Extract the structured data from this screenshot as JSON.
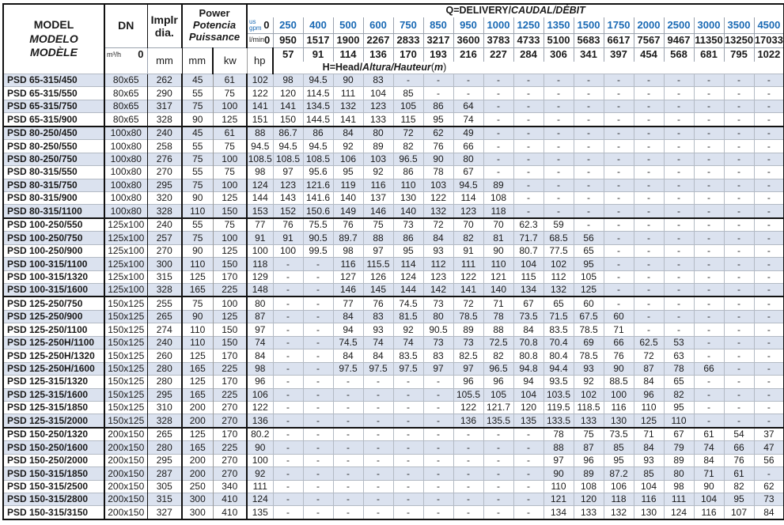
{
  "colors": {
    "accent_blue": "#1969b4",
    "row_stripe": "#dbe2ef",
    "grid_gray": "#b3bac4",
    "border_dark": "#111111"
  },
  "header": {
    "model_lines": [
      "MODEL",
      "MODELO",
      "MODÈLE"
    ],
    "dn_label": "DN",
    "implr_line1": "Implr",
    "implr_line2": "dia.",
    "power_lines": [
      "Power",
      "Potencia",
      "Puissance"
    ],
    "unit_mm": "mm",
    "kw_label": "kw",
    "hp_label": "hp",
    "q_title_plain": "Q=DELIVERY/",
    "q_title_italic": "CAUDAL/DÉBIT",
    "h_title_plain": "H=Head/",
    "h_title_italic": "Altura/Hauteur",
    "h_title_suffix_italic": "m",
    "flow_rows": [
      {
        "unit_lines": [
          "us",
          "gpm"
        ],
        "blue": true,
        "values": [
          "0",
          "250",
          "400",
          "500",
          "600",
          "750",
          "850",
          "950",
          "1000",
          "1250",
          "1350",
          "1500",
          "1750",
          "2000",
          "2500",
          "3000",
          "3500",
          "4500"
        ]
      },
      {
        "unit_lines": [
          "l/min"
        ],
        "blue": false,
        "values": [
          "0",
          "950",
          "1517",
          "1900",
          "2267",
          "2833",
          "3217",
          "3600",
          "3783",
          "4733",
          "5100",
          "5683",
          "6617",
          "7567",
          "9467",
          "11350",
          "13250",
          "17033"
        ]
      },
      {
        "unit_lines": [
          "m³/h"
        ],
        "blue": false,
        "values": [
          "0",
          "57",
          "91",
          "114",
          "136",
          "170",
          "193",
          "216",
          "227",
          "284",
          "306",
          "341",
          "397",
          "454",
          "568",
          "681",
          "795",
          "1022"
        ]
      }
    ]
  },
  "rows": [
    {
      "model": "PSD 65-315/450",
      "dn": "80x65",
      "dia": "262",
      "kw": "45",
      "hp": "61",
      "group_start": false,
      "head": [
        "102",
        "98",
        "94.5",
        "90",
        "83",
        "-",
        "-",
        "-",
        "-",
        "-",
        "-",
        "-",
        "-",
        "-",
        "-",
        "-",
        "-",
        "-"
      ]
    },
    {
      "model": "PSD 65-315/550",
      "dn": "80x65",
      "dia": "290",
      "kw": "55",
      "hp": "75",
      "group_start": false,
      "head": [
        "122",
        "120",
        "114.5",
        "111",
        "104",
        "85",
        "-",
        "-",
        "-",
        "-",
        "-",
        "-",
        "-",
        "-",
        "-",
        "-",
        "-",
        "-"
      ]
    },
    {
      "model": "PSD 65-315/750",
      "dn": "80x65",
      "dia": "317",
      "kw": "75",
      "hp": "100",
      "group_start": false,
      "head": [
        "141",
        "141",
        "134.5",
        "132",
        "123",
        "105",
        "86",
        "64",
        "-",
        "-",
        "-",
        "-",
        "-",
        "-",
        "-",
        "-",
        "-",
        "-"
      ]
    },
    {
      "model": "PSD 65-315/900",
      "dn": "80x65",
      "dia": "328",
      "kw": "90",
      "hp": "125",
      "group_start": false,
      "head": [
        "151",
        "150",
        "144.5",
        "141",
        "133",
        "115",
        "95",
        "74",
        "-",
        "-",
        "-",
        "-",
        "-",
        "-",
        "-",
        "-",
        "-",
        "-"
      ]
    },
    {
      "model": "PSD 80-250/450",
      "dn": "100x80",
      "dia": "240",
      "kw": "45",
      "hp": "61",
      "group_start": true,
      "head": [
        "88",
        "86.7",
        "86",
        "84",
        "80",
        "72",
        "62",
        "49",
        "-",
        "-",
        "-",
        "-",
        "-",
        "-",
        "-",
        "-",
        "-",
        "-"
      ]
    },
    {
      "model": "PSD 80-250/550",
      "dn": "100x80",
      "dia": "258",
      "kw": "55",
      "hp": "75",
      "group_start": false,
      "head": [
        "94.5",
        "94.5",
        "94.5",
        "92",
        "89",
        "82",
        "76",
        "66",
        "-",
        "-",
        "-",
        "-",
        "-",
        "-",
        "-",
        "-",
        "-",
        "-"
      ]
    },
    {
      "model": "PSD 80-250/750",
      "dn": "100x80",
      "dia": "276",
      "kw": "75",
      "hp": "100",
      "group_start": false,
      "head": [
        "108.5",
        "108.5",
        "108.5",
        "106",
        "103",
        "96.5",
        "90",
        "80",
        "-",
        "-",
        "-",
        "-",
        "-",
        "-",
        "-",
        "-",
        "-",
        "-"
      ]
    },
    {
      "model": "PSD 80-315/550",
      "dn": "100x80",
      "dia": "270",
      "kw": "55",
      "hp": "75",
      "group_start": false,
      "head": [
        "98",
        "97",
        "95.6",
        "95",
        "92",
        "86",
        "78",
        "67",
        "-",
        "-",
        "-",
        "-",
        "-",
        "-",
        "-",
        "-",
        "-",
        "-"
      ]
    },
    {
      "model": "PSD 80-315/750",
      "dn": "100x80",
      "dia": "295",
      "kw": "75",
      "hp": "100",
      "group_start": false,
      "head": [
        "124",
        "123",
        "121.6",
        "119",
        "116",
        "110",
        "103",
        "94.5",
        "89",
        "-",
        "-",
        "-",
        "-",
        "-",
        "-",
        "-",
        "-",
        "-"
      ]
    },
    {
      "model": "PSD 80-315/900",
      "dn": "100x80",
      "dia": "320",
      "kw": "90",
      "hp": "125",
      "group_start": false,
      "head": [
        "144",
        "143",
        "141.6",
        "140",
        "137",
        "130",
        "122",
        "114",
        "108",
        "-",
        "-",
        "-",
        "-",
        "-",
        "-",
        "-",
        "-",
        "-"
      ]
    },
    {
      "model": "PSD 80-315/1100",
      "dn": "100x80",
      "dia": "328",
      "kw": "110",
      "hp": "150",
      "group_start": false,
      "head": [
        "153",
        "152",
        "150.6",
        "149",
        "146",
        "140",
        "132",
        "123",
        "118",
        "-",
        "-",
        "-",
        "-",
        "-",
        "-",
        "-",
        "-",
        "-"
      ]
    },
    {
      "model": "PSD 100-250/550",
      "dn": "125x100",
      "dia": "240",
      "kw": "55",
      "hp": "75",
      "group_start": true,
      "head": [
        "77",
        "76",
        "75.5",
        "76",
        "75",
        "73",
        "72",
        "70",
        "70",
        "62.3",
        "59",
        "-",
        "-",
        "-",
        "-",
        "-",
        "-",
        "-"
      ]
    },
    {
      "model": "PSD 100-250/750",
      "dn": "125x100",
      "dia": "257",
      "kw": "75",
      "hp": "100",
      "group_start": false,
      "head": [
        "91",
        "91",
        "90.5",
        "89.7",
        "88",
        "86",
        "84",
        "82",
        "81",
        "71.7",
        "68.5",
        "56",
        "-",
        "-",
        "-",
        "-",
        "-",
        "-"
      ]
    },
    {
      "model": "PSD 100-250/900",
      "dn": "125x100",
      "dia": "270",
      "kw": "90",
      "hp": "125",
      "group_start": false,
      "head": [
        "100",
        "100",
        "99.5",
        "98",
        "97",
        "95",
        "93",
        "91",
        "90",
        "80.7",
        "77.5",
        "65",
        "-",
        "-",
        "-",
        "-",
        "-",
        "-"
      ]
    },
    {
      "model": "PSD 100-315/1100",
      "dn": "125x100",
      "dia": "300",
      "kw": "110",
      "hp": "150",
      "group_start": false,
      "head": [
        "118",
        "-",
        "-",
        "116",
        "115.5",
        "114",
        "112",
        "111",
        "110",
        "104",
        "102",
        "95",
        "-",
        "-",
        "-",
        "-",
        "-",
        "-"
      ]
    },
    {
      "model": "PSD 100-315/1320",
      "dn": "125x100",
      "dia": "315",
      "kw": "125",
      "hp": "170",
      "group_start": false,
      "head": [
        "129",
        "-",
        "-",
        "127",
        "126",
        "124",
        "123",
        "122",
        "121",
        "115",
        "112",
        "105",
        "-",
        "-",
        "-",
        "-",
        "-",
        "-"
      ]
    },
    {
      "model": "PSD 100-315/1600",
      "dn": "125x100",
      "dia": "328",
      "kw": "165",
      "hp": "225",
      "group_start": false,
      "head": [
        "148",
        "-",
        "-",
        "146",
        "145",
        "144",
        "142",
        "141",
        "140",
        "134",
        "132",
        "125",
        "-",
        "-",
        "-",
        "-",
        "-",
        "-"
      ]
    },
    {
      "model": "PSD 125-250/750",
      "dn": "150x125",
      "dia": "255",
      "kw": "75",
      "hp": "100",
      "group_start": true,
      "head": [
        "80",
        "-",
        "-",
        "77",
        "76",
        "74.5",
        "73",
        "72",
        "71",
        "67",
        "65",
        "60",
        "-",
        "-",
        "-",
        "-",
        "-",
        "-"
      ]
    },
    {
      "model": "PSD 125-250/900",
      "dn": "150x125",
      "dia": "265",
      "kw": "90",
      "hp": "125",
      "group_start": false,
      "head": [
        "87",
        "-",
        "-",
        "84",
        "83",
        "81.5",
        "80",
        "78.5",
        "78",
        "73.5",
        "71.5",
        "67.5",
        "60",
        "-",
        "-",
        "-",
        "-",
        "-"
      ]
    },
    {
      "model": "PSD 125-250/1100",
      "dn": "150x125",
      "dia": "274",
      "kw": "110",
      "hp": "150",
      "group_start": false,
      "head": [
        "97",
        "-",
        "-",
        "94",
        "93",
        "92",
        "90.5",
        "89",
        "88",
        "84",
        "83.5",
        "78.5",
        "71",
        "-",
        "-",
        "-",
        "-",
        "-"
      ]
    },
    {
      "model": "PSD 125-250H/1100",
      "dn": "150x125",
      "dia": "240",
      "kw": "110",
      "hp": "150",
      "group_start": false,
      "head": [
        "74",
        "-",
        "-",
        "74.5",
        "74",
        "74",
        "73",
        "73",
        "72.5",
        "70.8",
        "70.4",
        "69",
        "66",
        "62.5",
        "53",
        "-",
        "-",
        "-"
      ]
    },
    {
      "model": "PSD 125-250H/1320",
      "dn": "150x125",
      "dia": "260",
      "kw": "125",
      "hp": "170",
      "group_start": false,
      "head": [
        "84",
        "-",
        "-",
        "84",
        "84",
        "83.5",
        "83",
        "82.5",
        "82",
        "80.8",
        "80.4",
        "78.5",
        "76",
        "72",
        "63",
        "-",
        "-",
        "-"
      ]
    },
    {
      "model": "PSD 125-250H/1600",
      "dn": "150x125",
      "dia": "280",
      "kw": "165",
      "hp": "225",
      "group_start": false,
      "head": [
        "98",
        "-",
        "-",
        "97.5",
        "97.5",
        "97.5",
        "97",
        "97",
        "96.5",
        "94.8",
        "94.4",
        "93",
        "90",
        "87",
        "78",
        "66",
        "-",
        "-"
      ]
    },
    {
      "model": "PSD 125-315/1320",
      "dn": "150x125",
      "dia": "280",
      "kw": "125",
      "hp": "170",
      "group_start": false,
      "head": [
        "96",
        "-",
        "-",
        "-",
        "-",
        "-",
        "-",
        "96",
        "96",
        "94",
        "93.5",
        "92",
        "88.5",
        "84",
        "65",
        "-",
        "-",
        "-"
      ]
    },
    {
      "model": "PSD 125-315/1600",
      "dn": "150x125",
      "dia": "295",
      "kw": "165",
      "hp": "225",
      "group_start": false,
      "head": [
        "106",
        "-",
        "-",
        "-",
        "-",
        "-",
        "-",
        "105.5",
        "105",
        "104",
        "103.5",
        "102",
        "100",
        "96",
        "82",
        "-",
        "-",
        "-"
      ]
    },
    {
      "model": "PSD 125-315/1850",
      "dn": "150x125",
      "dia": "310",
      "kw": "200",
      "hp": "270",
      "group_start": false,
      "head": [
        "122",
        "-",
        "-",
        "-",
        "-",
        "-",
        "-",
        "122",
        "121.7",
        "120",
        "119.5",
        "118.5",
        "116",
        "110",
        "95",
        "-",
        "-",
        "-"
      ]
    },
    {
      "model": "PSD 125-315/2000",
      "dn": "150x125",
      "dia": "328",
      "kw": "200",
      "hp": "270",
      "group_start": false,
      "head": [
        "136",
        "-",
        "-",
        "-",
        "-",
        "-",
        "-",
        "136",
        "135.5",
        "135",
        "133.5",
        "133",
        "130",
        "125",
        "110",
        "-",
        "-",
        "-"
      ]
    },
    {
      "model": "PSD 150-250/1320",
      "dn": "200x150",
      "dia": "265",
      "kw": "125",
      "hp": "170",
      "group_start": true,
      "head": [
        "80.2",
        "-",
        "-",
        "-",
        "-",
        "-",
        "-",
        "-",
        "-",
        "-",
        "78",
        "75",
        "73.5",
        "71",
        "67",
        "61",
        "54",
        "37"
      ]
    },
    {
      "model": "PSD 150-250/1600",
      "dn": "200x150",
      "dia": "280",
      "kw": "165",
      "hp": "225",
      "group_start": false,
      "head": [
        "90",
        "-",
        "-",
        "-",
        "-",
        "-",
        "-",
        "-",
        "-",
        "-",
        "88",
        "87",
        "85",
        "84",
        "79",
        "74",
        "66",
        "47"
      ]
    },
    {
      "model": "PSD 150-250/2000",
      "dn": "200x150",
      "dia": "295",
      "kw": "200",
      "hp": "270",
      "group_start": false,
      "head": [
        "100",
        "-",
        "-",
        "-",
        "-",
        "-",
        "-",
        "-",
        "-",
        "-",
        "97",
        "96",
        "95",
        "93",
        "89",
        "84",
        "76",
        "56"
      ]
    },
    {
      "model": "PSD 150-315/1850",
      "dn": "200x150",
      "dia": "287",
      "kw": "200",
      "hp": "270",
      "group_start": false,
      "head": [
        "92",
        "-",
        "-",
        "-",
        "-",
        "-",
        "-",
        "-",
        "-",
        "-",
        "90",
        "89",
        "87.2",
        "85",
        "80",
        "71",
        "61",
        "-"
      ]
    },
    {
      "model": "PSD 150-315/2500",
      "dn": "200x150",
      "dia": "305",
      "kw": "250",
      "hp": "340",
      "group_start": false,
      "head": [
        "111",
        "-",
        "-",
        "-",
        "-",
        "-",
        "-",
        "-",
        "-",
        "-",
        "110",
        "108",
        "106",
        "104",
        "98",
        "90",
        "82",
        "62"
      ]
    },
    {
      "model": "PSD 150-315/2800",
      "dn": "200x150",
      "dia": "315",
      "kw": "300",
      "hp": "410",
      "group_start": false,
      "head": [
        "124",
        "-",
        "-",
        "-",
        "-",
        "-",
        "-",
        "-",
        "-",
        "-",
        "121",
        "120",
        "118",
        "116",
        "111",
        "104",
        "95",
        "73"
      ]
    },
    {
      "model": "PSD 150-315/3150",
      "dn": "200x150",
      "dia": "327",
      "kw": "300",
      "hp": "410",
      "group_start": false,
      "head": [
        "135",
        "-",
        "-",
        "-",
        "-",
        "-",
        "-",
        "-",
        "-",
        "-",
        "134",
        "133",
        "132",
        "130",
        "124",
        "116",
        "107",
        "84"
      ]
    }
  ]
}
